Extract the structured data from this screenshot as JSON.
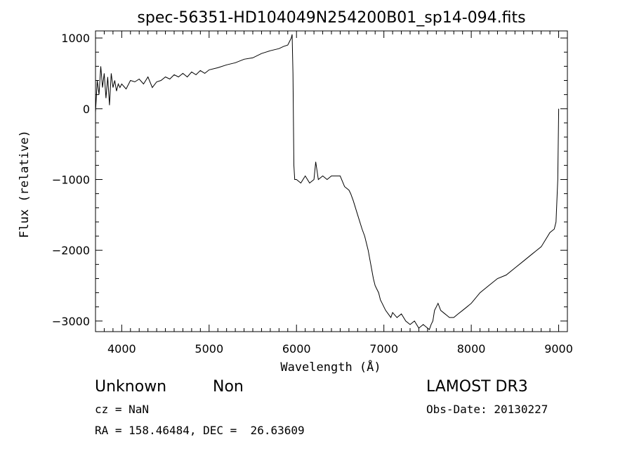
{
  "chart_data": {
    "type": "line",
    "title": "spec-56351-HD104049N254200B01_sp14-094.fits",
    "xlabel": "Wavelength (Å)",
    "ylabel": "Flux (relative)",
    "xlim": [
      3700,
      9100
    ],
    "ylim": [
      -3150,
      1100
    ],
    "xticks": [
      4000,
      5000,
      6000,
      7000,
      8000,
      9000
    ],
    "yticks": [
      1000,
      0,
      -1000,
      -2000,
      -3000
    ],
    "xtick_labels": [
      "4000",
      "5000",
      "6000",
      "7000",
      "8000",
      "9000"
    ],
    "ytick_labels": [
      "1000",
      "0",
      "−1000",
      "−2000",
      "−3000"
    ],
    "grid": false,
    "series": [
      {
        "x": [
          3700,
          3720,
          3740,
          3760,
          3780,
          3800,
          3820,
          3840,
          3860,
          3880,
          3900,
          3920,
          3940,
          3960,
          3980,
          4000,
          4050,
          4100,
          4150,
          4200,
          4250,
          4300,
          4350,
          4400,
          4450,
          4500,
          4550,
          4600,
          4650,
          4700,
          4750,
          4800,
          4850,
          4900,
          4950,
          5000,
          5100,
          5200,
          5300,
          5400,
          5500,
          5600,
          5700,
          5800,
          5850,
          5900,
          5920,
          5940,
          5950,
          5960,
          5970,
          5980,
          6000,
          6050,
          6100,
          6150,
          6200,
          6220,
          6250,
          6300,
          6350,
          6400,
          6450,
          6500,
          6550,
          6600,
          6620,
          6650,
          6700,
          6750,
          6780,
          6800,
          6820,
          6850,
          6880,
          6900,
          6920,
          6940,
          6960,
          6980,
          7000,
          7020,
          7050,
          7080,
          7100,
          7150,
          7200,
          7250,
          7300,
          7350,
          7400,
          7450,
          7500,
          7520,
          7540,
          7560,
          7580,
          7600,
          7620,
          7650,
          7700,
          7750,
          7800,
          7850,
          7900,
          7950,
          8000,
          8100,
          8200,
          8300,
          8400,
          8500,
          8600,
          8700,
          8800,
          8850,
          8900,
          8950,
          8970,
          8990,
          9000
        ],
        "y": [
          -50,
          400,
          200,
          600,
          300,
          500,
          150,
          450,
          50,
          500,
          300,
          400,
          250,
          350,
          300,
          350,
          280,
          400,
          380,
          420,
          350,
          450,
          300,
          380,
          400,
          450,
          420,
          480,
          450,
          500,
          450,
          520,
          480,
          540,
          500,
          550,
          580,
          620,
          650,
          700,
          720,
          780,
          820,
          850,
          880,
          900,
          950,
          1000,
          1050,
          500,
          -800,
          -1000,
          -1000,
          -1050,
          -950,
          -1050,
          -1000,
          -750,
          -1000,
          -950,
          -1000,
          -950,
          -950,
          -950,
          -1100,
          -1150,
          -1200,
          -1300,
          -1500,
          -1700,
          -1800,
          -1900,
          -2000,
          -2200,
          -2400,
          -2500,
          -2550,
          -2600,
          -2700,
          -2750,
          -2800,
          -2850,
          -2900,
          -2950,
          -2880,
          -2950,
          -2900,
          -3000,
          -3050,
          -3000,
          -3100,
          -3050,
          -3100,
          -3120,
          -3050,
          -3000,
          -2850,
          -2800,
          -2750,
          -2850,
          -2900,
          -2950,
          -2950,
          -2900,
          -2850,
          -2800,
          -2750,
          -2600,
          -2500,
          -2400,
          -2350,
          -2250,
          -2150,
          -2050,
          -1950,
          -1850,
          -1750,
          -1700,
          -1600,
          -1000,
          0
        ]
      }
    ]
  },
  "info": {
    "object_class": "Unknown",
    "subclass": "Non",
    "survey": "LAMOST DR3",
    "cz": "cz = NaN",
    "coords": "RA = 158.46484, DEC =  26.63609",
    "obs_date": "Obs-Date: 20130227"
  }
}
